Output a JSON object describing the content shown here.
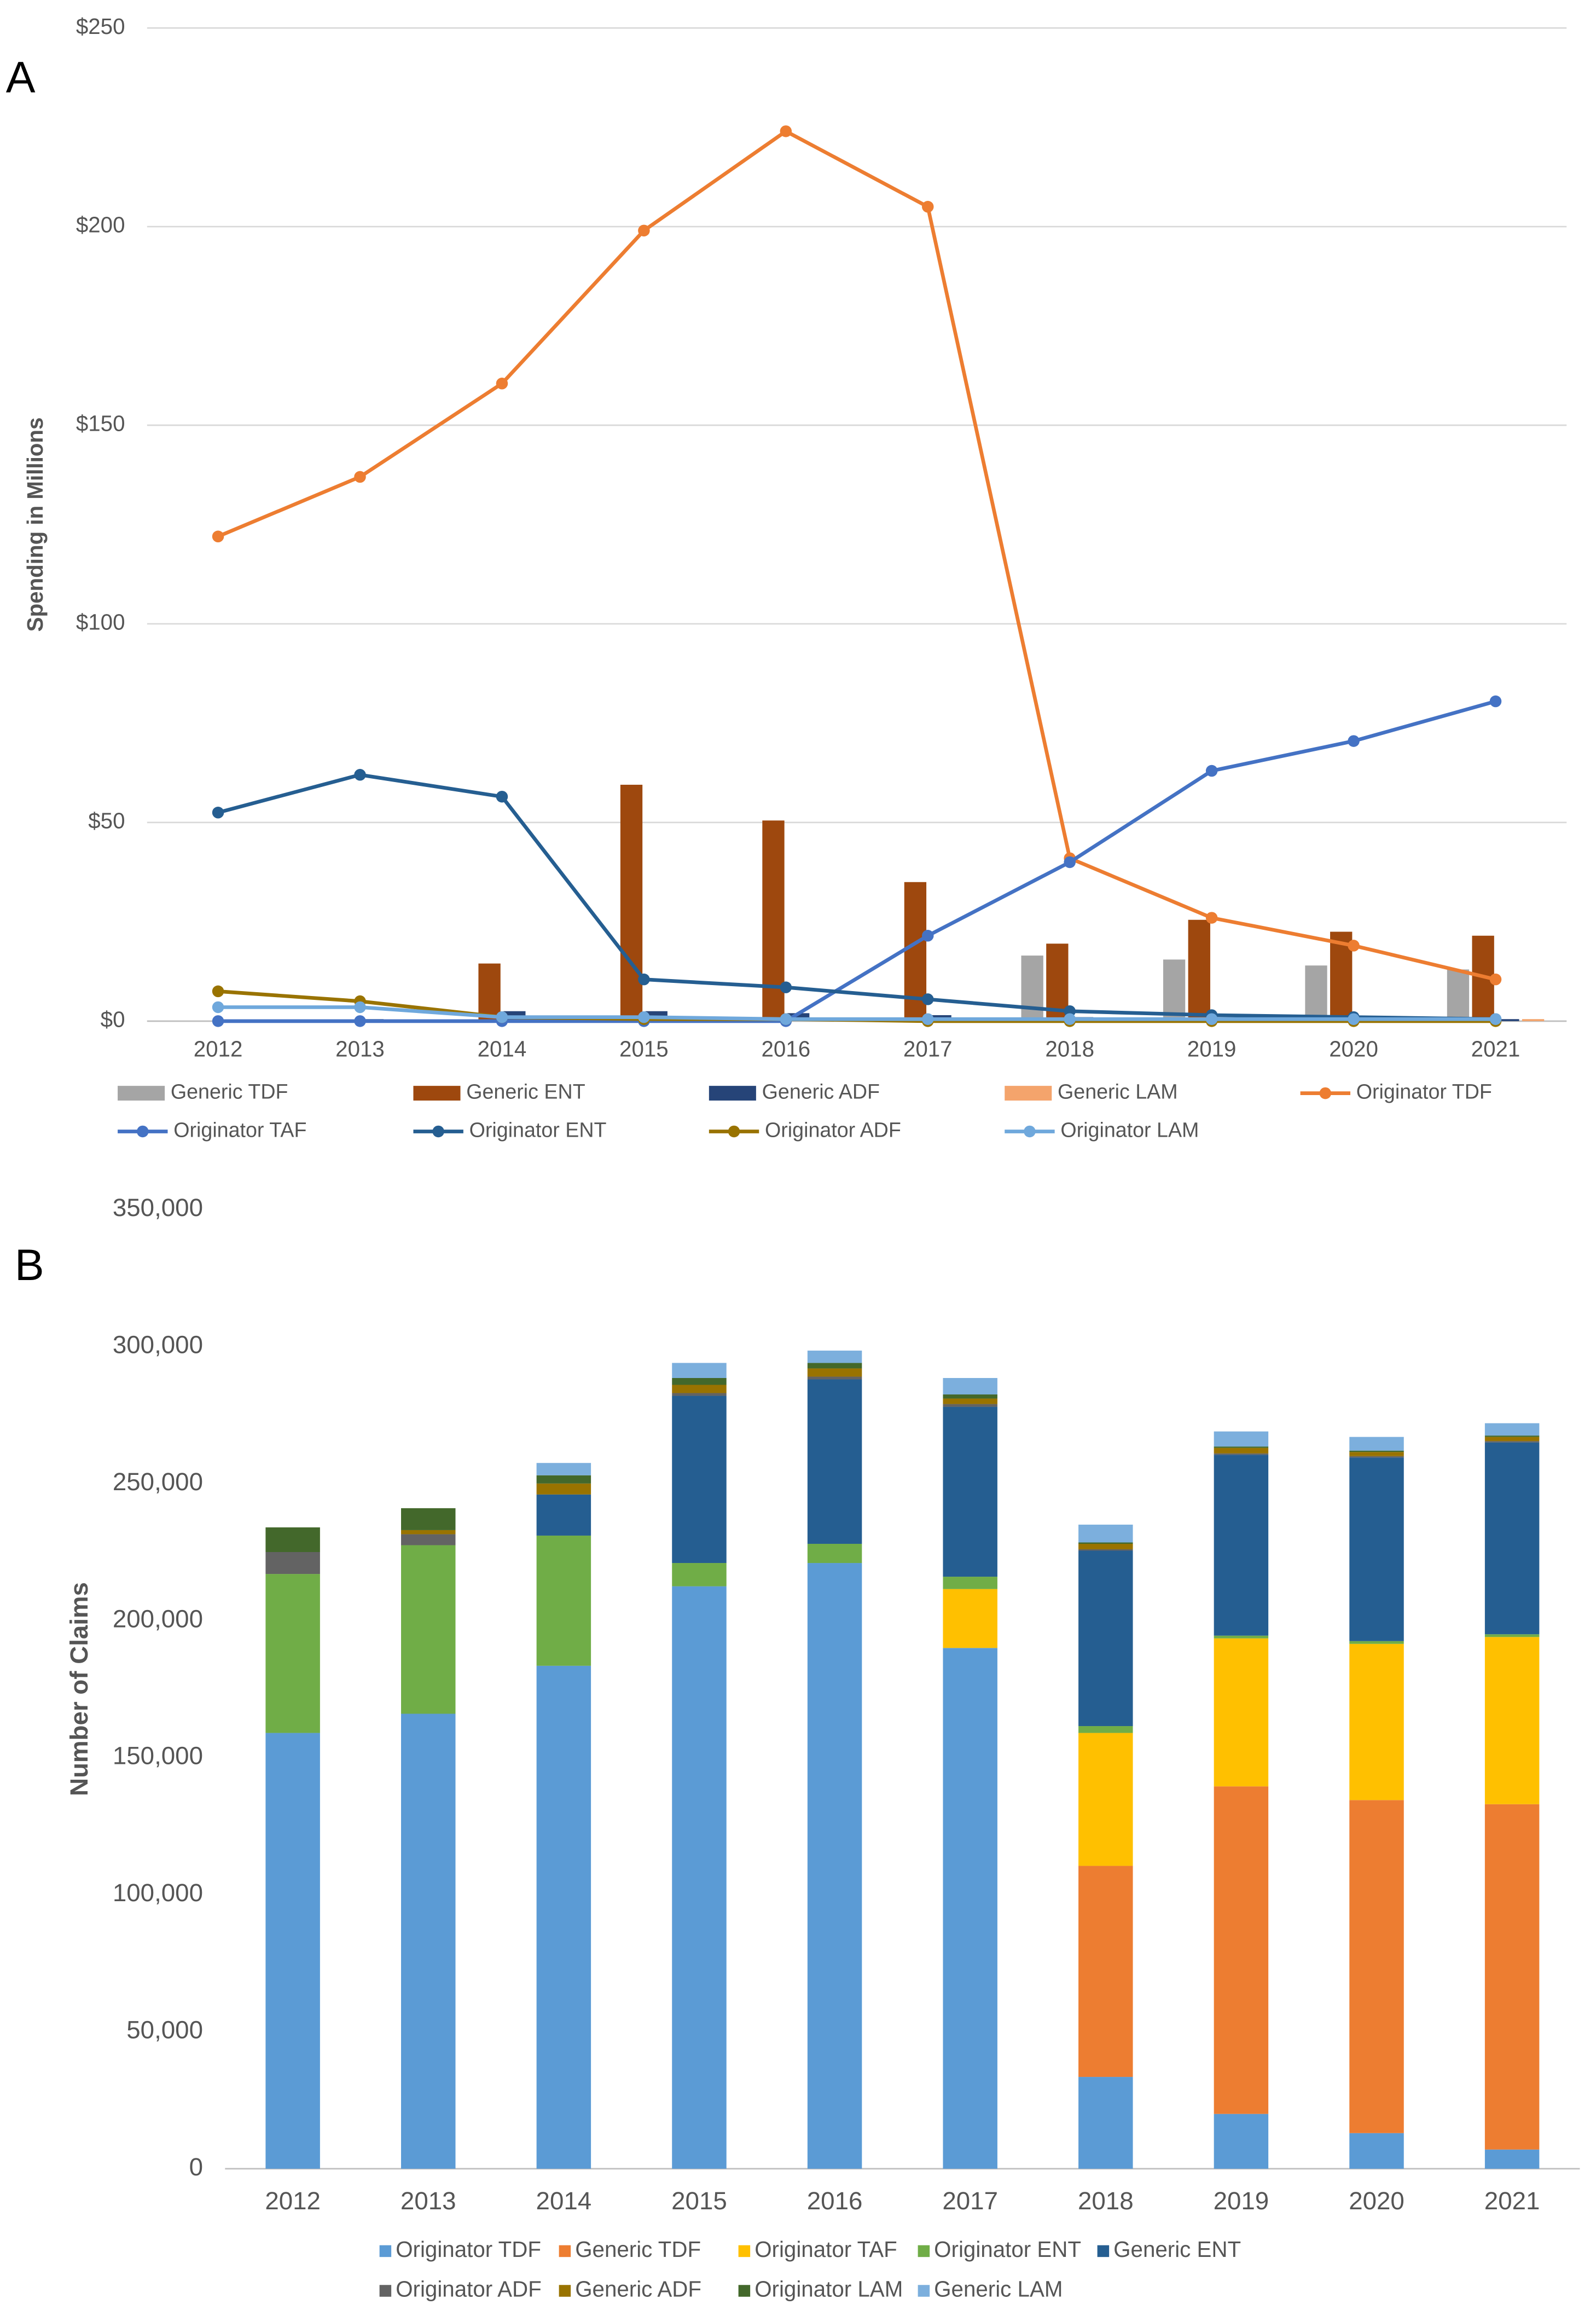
{
  "chart_data": [
    {
      "type": "combo",
      "label": "A",
      "y_label": "Spending in Millions",
      "grid": true,
      "categories": [
        "2012",
        "2013",
        "2014",
        "2015",
        "2016",
        "2017",
        "2018",
        "2019",
        "2020",
        "2021"
      ],
      "ylim": [
        0,
        250
      ],
      "yticks": [
        {
          "value": 0,
          "label": "$0"
        },
        {
          "value": 50,
          "label": "$50"
        },
        {
          "value": 100,
          "label": "$100"
        },
        {
          "value": 150,
          "label": "$150"
        },
        {
          "value": 200,
          "label": "$200"
        },
        {
          "value": 250,
          "label": "$250"
        }
      ],
      "series": [
        {
          "name": "Generic TDF",
          "type": "bar",
          "color": "#a5a5a5",
          "values": [
            0,
            0,
            0,
            0,
            0,
            0,
            16.5,
            15.5,
            14,
            13
          ]
        },
        {
          "name": "Generic ENT",
          "type": "bar",
          "color": "#9e480e",
          "values": [
            0,
            0,
            14.5,
            59.5,
            50.5,
            35,
            19.5,
            25.5,
            22.5,
            21.5
          ]
        },
        {
          "name": "Generic ADF",
          "type": "bar",
          "color": "#264478",
          "values": [
            0,
            0.5,
            2.5,
            2.5,
            2,
            1.5,
            1,
            0.5,
            0.5,
            0.5
          ]
        },
        {
          "name": "Generic LAM",
          "type": "bar",
          "color": "#f4a46c",
          "values": [
            0,
            0,
            0,
            0,
            0,
            0,
            0,
            0,
            0,
            0.5
          ]
        },
        {
          "name": "Originator TDF",
          "type": "line",
          "color": "#ed7d31",
          "values": [
            122,
            137,
            160.5,
            199,
            224,
            205,
            41,
            26,
            19,
            10.5
          ]
        },
        {
          "name": "Originator TAF",
          "type": "line",
          "color": "#4472c4",
          "values": [
            0,
            0,
            0,
            0,
            0,
            21.5,
            40,
            63,
            70.5,
            80.5
          ]
        },
        {
          "name": "Originator ENT",
          "type": "line",
          "color": "#255e91",
          "values": [
            52.5,
            62,
            56.5,
            10.5,
            8.5,
            5.5,
            2.5,
            1.5,
            1,
            0.5
          ]
        },
        {
          "name": "Originator ADF",
          "type": "line",
          "color": "#997300",
          "values": [
            7.5,
            5,
            1,
            0.5,
            0.5,
            0,
            0,
            0,
            0,
            0
          ]
        },
        {
          "name": "Originator LAM",
          "type": "line",
          "color": "#6fa8dc",
          "values": [
            3.5,
            3.5,
            1,
            1,
            0.5,
            0.5,
            0.5,
            0.5,
            0.5,
            0.5
          ]
        }
      ]
    },
    {
      "type": "stacked_bar",
      "label": "B",
      "y_label": "Number of Claims",
      "grid": false,
      "categories": [
        "2012",
        "2013",
        "2014",
        "2015",
        "2016",
        "2017",
        "2018",
        "2019",
        "2020",
        "2021"
      ],
      "ylim": [
        0,
        350000
      ],
      "yticks": [
        {
          "value": 0,
          "label": "0"
        },
        {
          "value": 50000,
          "label": "50,000"
        },
        {
          "value": 100000,
          "label": "100,000"
        },
        {
          "value": 150000,
          "label": "150,000"
        },
        {
          "value": 200000,
          "label": "200,000"
        },
        {
          "value": 250000,
          "label": "250,000"
        },
        {
          "value": 300000,
          "label": "300,000"
        },
        {
          "value": 350000,
          "label": "350,000"
        }
      ],
      "series": [
        {
          "name": "Originator TDF",
          "color": "#5b9bd5",
          "values": [
            159000,
            166000,
            183500,
            212500,
            221000,
            190000,
            33500,
            20000,
            13000,
            7000
          ]
        },
        {
          "name": "Generic TDF",
          "color": "#ed7d31",
          "values": [
            0,
            0,
            0,
            0,
            0,
            0,
            77000,
            119500,
            121500,
            126000
          ]
        },
        {
          "name": "Originator TAF",
          "color": "#ffc000",
          "values": [
            0,
            0,
            0,
            0,
            0,
            21500,
            48500,
            54000,
            57000,
            61000
          ]
        },
        {
          "name": "Originator ENT",
          "color": "#70ad47",
          "values": [
            58000,
            61500,
            47500,
            8500,
            7000,
            4500,
            2500,
            1000,
            1000,
            1000
          ]
        },
        {
          "name": "Generic ENT",
          "color": "#255e91",
          "values": [
            0,
            0,
            15000,
            61000,
            60000,
            62000,
            64000,
            66000,
            67000,
            70000
          ]
        },
        {
          "name": "Originator ADF",
          "color": "#636363",
          "values": [
            8000,
            4000,
            0,
            1000,
            1000,
            1000,
            500,
            500,
            500,
            500
          ]
        },
        {
          "name": "Generic ADF",
          "color": "#997300",
          "values": [
            0,
            1500,
            4000,
            3000,
            3000,
            2000,
            2000,
            2000,
            1500,
            1500
          ]
        },
        {
          "name": "Originator LAM",
          "color": "#43682b",
          "values": [
            9000,
            8000,
            3000,
            2500,
            2000,
            1500,
            500,
            500,
            500,
            500
          ]
        },
        {
          "name": "Generic LAM",
          "color": "#7cafdd",
          "values": [
            0,
            0,
            4500,
            5500,
            4500,
            6000,
            6500,
            5500,
            5000,
            4500
          ]
        }
      ]
    }
  ]
}
